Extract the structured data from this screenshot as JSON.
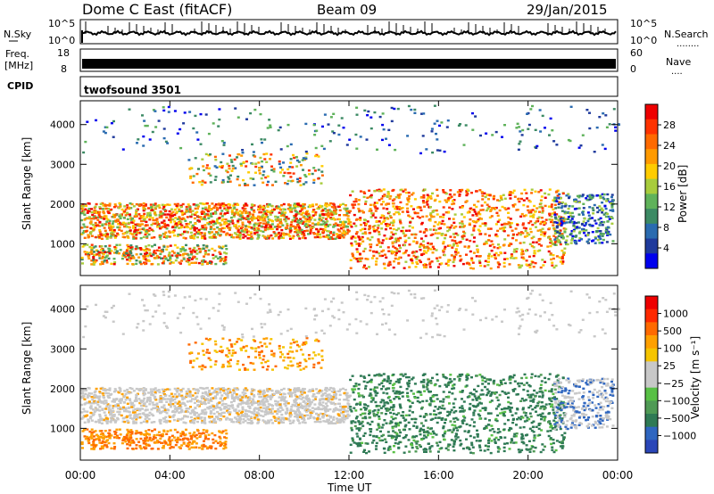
{
  "header": {
    "station": "Dome C East (fitACF)",
    "beam": "Beam 09",
    "date": "29/Jan/2015"
  },
  "summary": {
    "nsky_label": "N.Sky",
    "nsearch_label": "N.Search",
    "nsearch_dots": "........",
    "freq_label_line1": "Freq.",
    "freq_label_line2": "[MHz]",
    "nave_label": "Nave",
    "nave_dots": "....",
    "cpid_label": "CPID",
    "cpid_value": "twofsound 3501",
    "noise_ticks_left": [
      "10^5",
      "10^0"
    ],
    "noise_ticks_right": [
      "10^5",
      "10^0"
    ],
    "freq_ticks": [
      "18",
      "8"
    ],
    "nave_ticks": [
      "60",
      "0"
    ]
  },
  "chart_data": [
    {
      "type": "heatmap",
      "panel": "power",
      "ylabel": "Slant Range [km]",
      "ylim": [
        200,
        4600
      ],
      "yticks": [
        1000,
        2000,
        3000,
        4000
      ],
      "colorbar_label": "Power [dB]",
      "colorbar_range": [
        0,
        32
      ],
      "colorbar_ticks": [
        "28",
        "24",
        "20",
        "16",
        "12",
        "8",
        "4"
      ],
      "colorbar_colors": [
        "#0000ee",
        "#1f3a9c",
        "#2a6bb0",
        "#3c8a64",
        "#5fb25a",
        "#a8cc3c",
        "#ffcc00",
        "#ff9a00",
        "#ff6a00",
        "#ff3300",
        "#ee0000"
      ]
    },
    {
      "type": "heatmap",
      "panel": "velocity",
      "ylabel": "Slant Range [km]",
      "ylim": [
        200,
        4600
      ],
      "yticks": [
        1000,
        2000,
        3000,
        4000
      ],
      "colorbar_label": "Velocity [m s⁻¹]",
      "colorbar_ticks": [
        "1000",
        "500",
        "100",
        "25",
        "−25",
        "−100",
        "−500",
        "−1000"
      ],
      "colorbar_colors": [
        "#2a46b8",
        "#2f66c0",
        "#2f7a55",
        "#4f9a55",
        "#58c045",
        "#c8c8c8",
        "#c8c8c8",
        "#f5c400",
        "#ffa000",
        "#ff6a00",
        "#ff2a00",
        "#ee0000"
      ]
    }
  ],
  "time_axis": {
    "label": "Time UT",
    "ticks": [
      "00:00",
      "04:00",
      "08:00",
      "12:00",
      "16:00",
      "20:00",
      "00:00"
    ]
  }
}
